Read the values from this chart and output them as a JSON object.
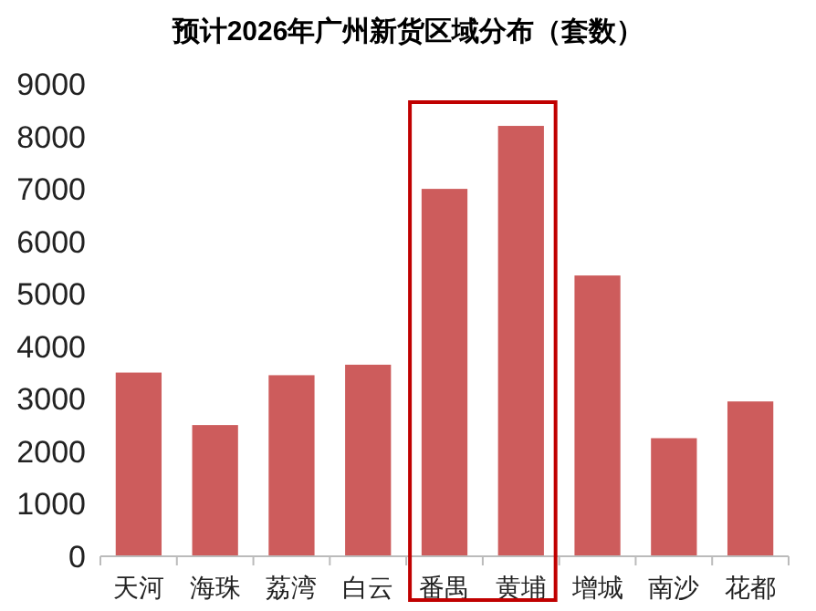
{
  "chart_data": {
    "type": "bar",
    "title": "预计2026年广州新货区域分布（套数）",
    "categories": [
      "天河",
      "海珠",
      "荔湾",
      "白云",
      "番禺",
      "黄埔",
      "增城",
      "南沙",
      "花都"
    ],
    "values": [
      3500,
      2500,
      3450,
      3650,
      7000,
      8200,
      5350,
      2250,
      2950
    ],
    "color": "#cd5c5c",
    "ylim": [
      0,
      9000
    ],
    "yticks": [
      0,
      1000,
      2000,
      3000,
      4000,
      5000,
      6000,
      7000,
      8000,
      9000
    ]
  }
}
